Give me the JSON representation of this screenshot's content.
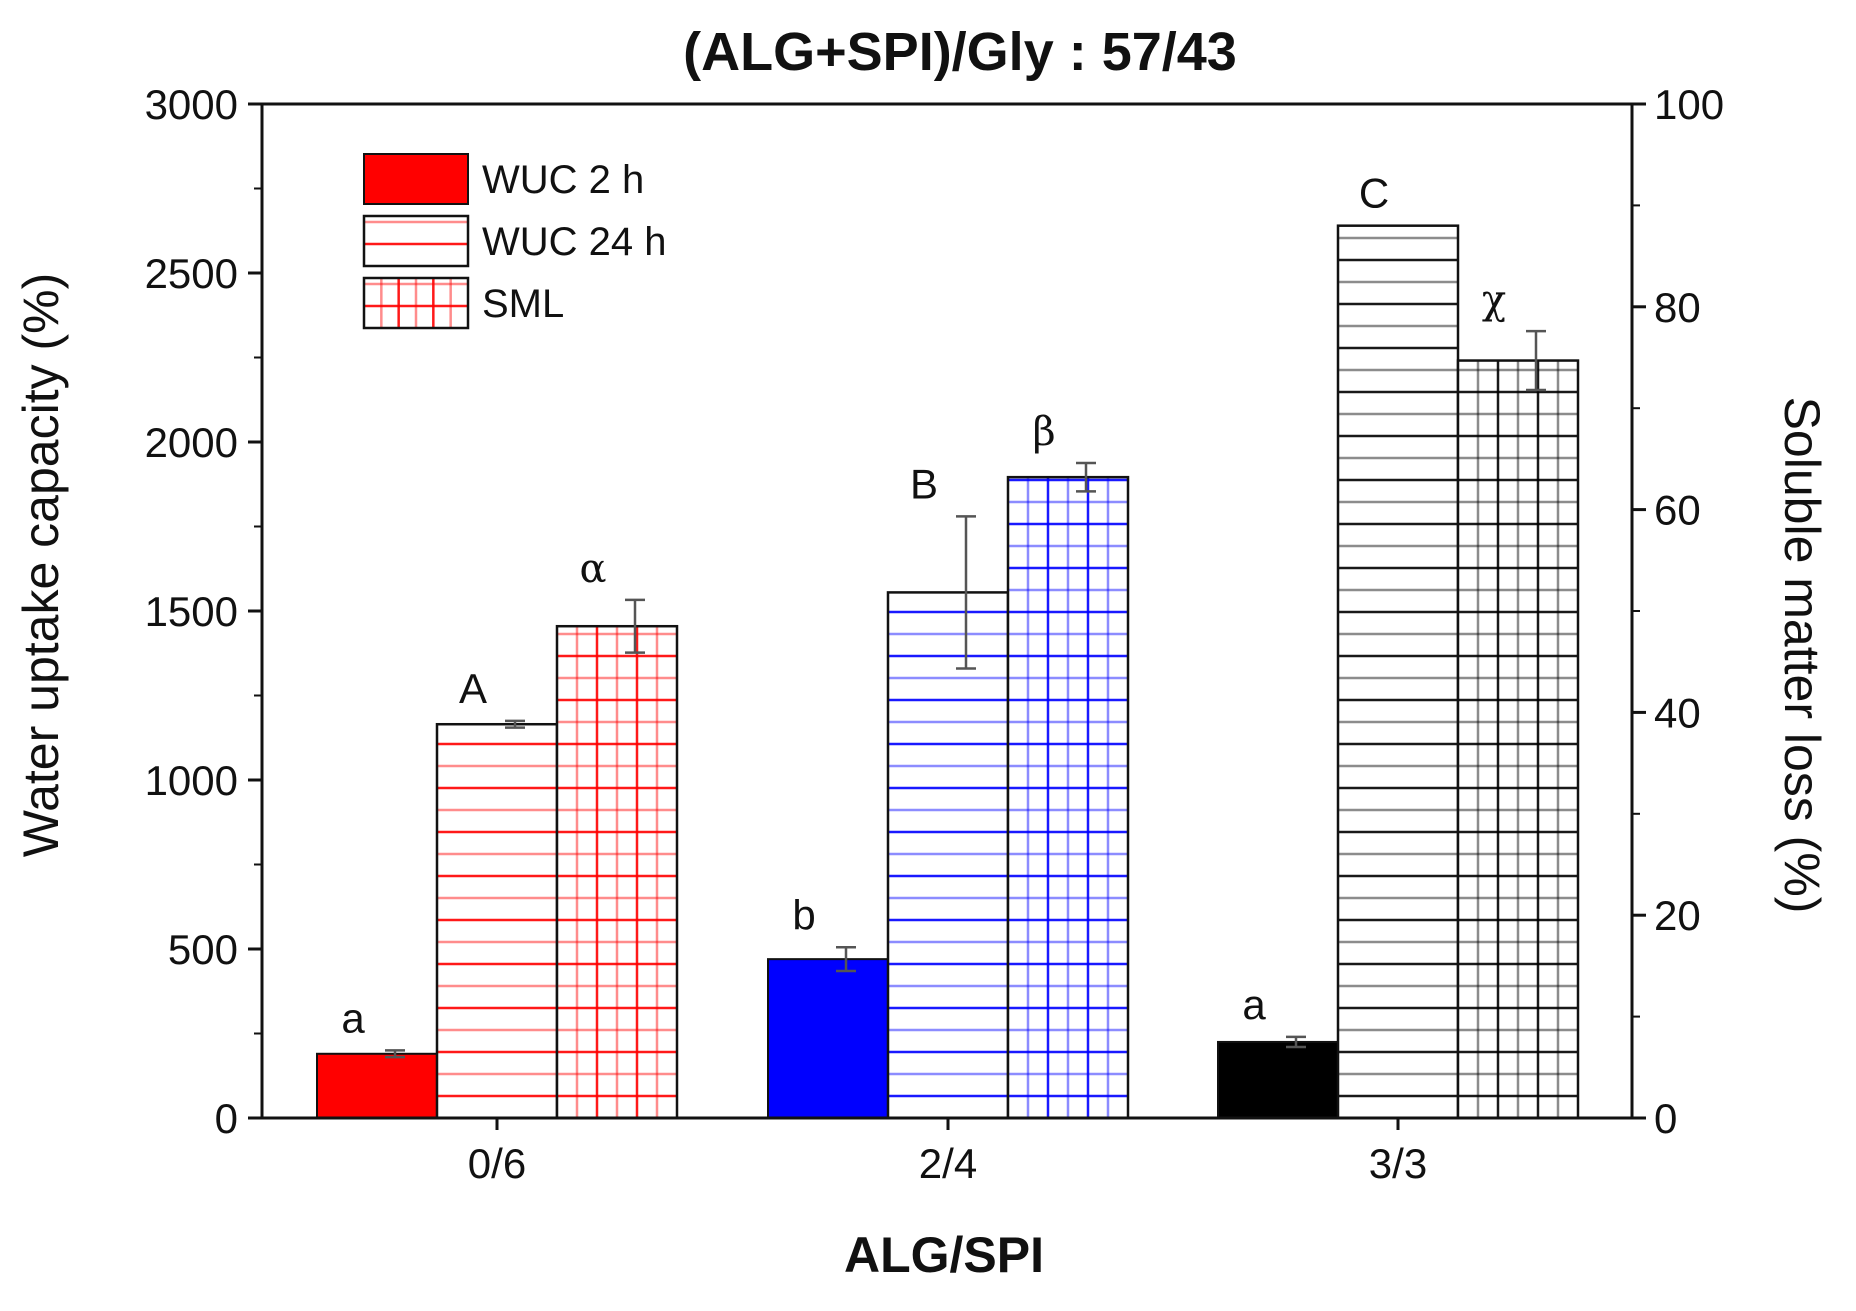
{
  "chart_data": {
    "type": "bar",
    "title": "(ALG+SPI)/Gly : 57/43",
    "xlabel": "ALG/SPI",
    "ylabel": "Water uptake capacity (%)",
    "y2label": "Soluble matter loss (%)",
    "categories": [
      "0/6",
      "2/4",
      "3/3"
    ],
    "ylim": [
      0,
      3000
    ],
    "yticks": [
      0,
      500,
      1000,
      1500,
      2000,
      2500,
      3000
    ],
    "y2lim": [
      0,
      100
    ],
    "y2ticks": [
      0,
      20,
      40,
      60,
      80,
      100
    ],
    "group_colors": [
      "#ff0000",
      "#0000ff",
      "#000000"
    ],
    "series": [
      {
        "name": "WUC 2 h",
        "axis": "left",
        "pattern": "solid",
        "values": [
          190,
          470,
          225
        ],
        "errors": [
          10,
          35,
          15
        ],
        "labels": [
          "a",
          "b",
          "a"
        ]
      },
      {
        "name": "WUC 24 h",
        "axis": "left",
        "pattern": "horizontal",
        "values": [
          1165,
          1555,
          2640
        ],
        "errors": [
          10,
          225,
          0
        ],
        "labels": [
          "A",
          "B",
          "C"
        ]
      },
      {
        "name": "SML",
        "axis": "right",
        "pattern": "grid",
        "values": [
          48.5,
          63.2,
          74.7
        ],
        "errors": [
          2.6,
          1.4,
          2.9
        ],
        "labels": [
          "α",
          "β",
          "χ"
        ]
      }
    ],
    "legend": {
      "position": "top-left",
      "entries": [
        "WUC 2 h",
        "WUC 24 h",
        "SML"
      ]
    }
  }
}
